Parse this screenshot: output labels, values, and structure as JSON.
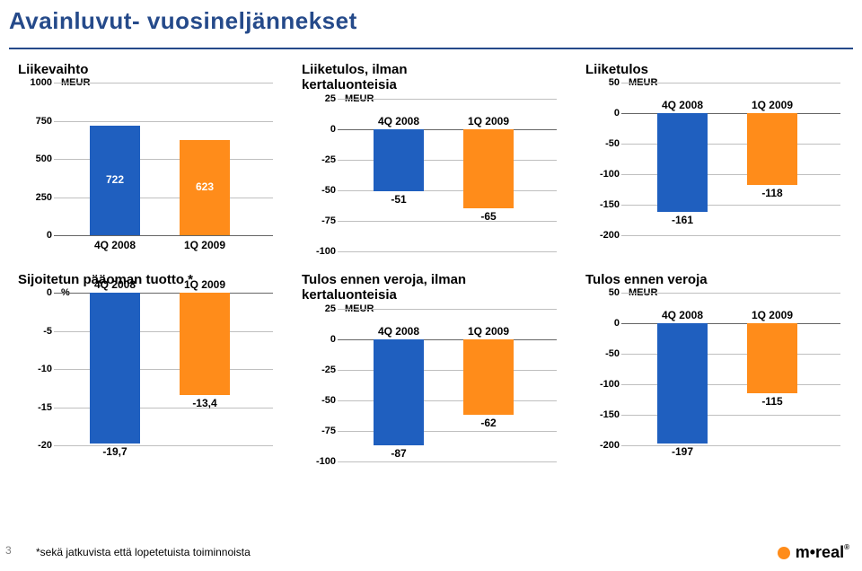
{
  "page_title": "Avainluvut- vuosineljännekset",
  "footnote_num": "3",
  "footnote": "*sekä jatkuvista että lopetetuista toiminnoista",
  "logo_text": "m•real",
  "colors": {
    "title": "#254a8a",
    "grid": "#bfbfbf",
    "zero": "#666666",
    "bar_4q": "#1f5fbf",
    "bar_1q": "#ff8c1a"
  },
  "charts": [
    {
      "title": "Liikevaihto",
      "unit": "MEUR",
      "ylim": [
        0,
        1000
      ],
      "ystep": 250,
      "categories": [
        "4Q 2008",
        "1Q 2009"
      ],
      "values": [
        722,
        623
      ],
      "show_cat_below": true
    },
    {
      "title": "Liiketulos, ilman\nkertaluonteisia",
      "unit": "MEUR",
      "ylim": [
        -100,
        25
      ],
      "ystep": 25,
      "categories": [
        "4Q 2008",
        "1Q 2009"
      ],
      "values": [
        -51,
        -65
      ],
      "show_cat_below": false
    },
    {
      "title": "Liiketulos",
      "unit": "MEUR",
      "ylim": [
        -200,
        50
      ],
      "ystep": 50,
      "categories": [
        "4Q 2008",
        "1Q 2009"
      ],
      "values": [
        -161,
        -118
      ],
      "show_cat_below": false
    },
    {
      "title": "Sijoitetun pääoman tuotto *",
      "unit": "%",
      "ylim": [
        -20,
        0
      ],
      "ystep": 5,
      "categories": [
        "4Q 2008",
        "1Q 2009"
      ],
      "values": [
        -19.7,
        -13.4
      ],
      "value_labels": [
        "-19,7",
        "-13,4"
      ],
      "show_cat_below": false
    },
    {
      "title": "Tulos ennen veroja, ilman\nkertaluonteisia",
      "unit": "MEUR",
      "ylim": [
        -100,
        25
      ],
      "ystep": 25,
      "categories": [
        "4Q 2008",
        "1Q 2009"
      ],
      "values": [
        -87,
        -62
      ],
      "show_cat_below": false
    },
    {
      "title": "Tulos ennen veroja",
      "unit": "MEUR",
      "ylim": [
        -200,
        50
      ],
      "ystep": 50,
      "categories": [
        "4Q 2008",
        "1Q 2009"
      ],
      "values": [
        -197,
        -115
      ],
      "show_cat_below": false
    }
  ]
}
